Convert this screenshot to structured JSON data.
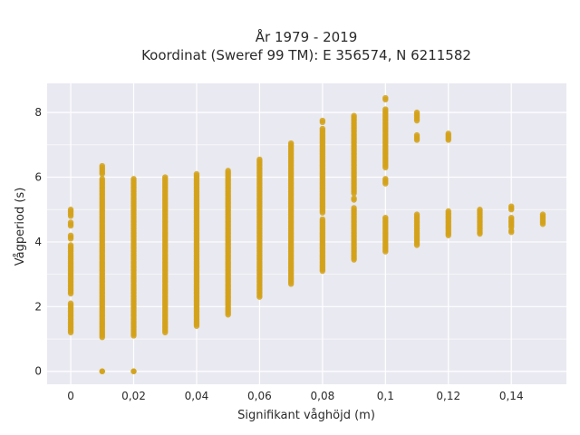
{
  "chart_data": {
    "type": "scatter",
    "title": "År 1979 - 2019",
    "subtitle": "Koordinat (Sweref 99 TM): E 356574, N 6211582",
    "xlabel": "Signifikant våghöjd (m)",
    "ylabel": "Vågperiod (s)",
    "xlim": [
      -0.0075,
      0.1575
    ],
    "ylim": [
      -0.4,
      8.9
    ],
    "x_ticks": [
      0,
      0.02,
      0.04,
      0.06,
      0.08,
      0.1,
      0.12,
      0.14
    ],
    "x_tick_labels": [
      "0",
      "0,02",
      "0,04",
      "0,06",
      "0,08",
      "0,1",
      "0,12",
      "0,14"
    ],
    "y_ticks": [
      0,
      2,
      4,
      6,
      8
    ],
    "y_tick_labels": [
      "0",
      "2",
      "4",
      "6",
      "8"
    ],
    "grid": true,
    "marker_color": "#d4a21a",
    "plot_background": "#e9e9f1",
    "columns": [
      {
        "x": 0,
        "segments": [
          [
            1.2,
            2.1
          ],
          [
            2.4,
            3.9
          ],
          [
            4.1,
            4.2
          ],
          [
            4.5,
            4.6
          ],
          [
            4.8,
            5.0
          ]
        ]
      },
      {
        "x": 0.01,
        "segments": [
          [
            0,
            0
          ],
          [
            1.05,
            5.95
          ],
          [
            6.1,
            6.35
          ]
        ]
      },
      {
        "x": 0.02,
        "segments": [
          [
            0,
            0
          ],
          [
            1.1,
            5.95
          ]
        ]
      },
      {
        "x": 0.03,
        "segments": [
          [
            1.2,
            6.0
          ]
        ]
      },
      {
        "x": 0.04,
        "segments": [
          [
            1.4,
            6.1
          ]
        ]
      },
      {
        "x": 0.05,
        "segments": [
          [
            1.75,
            6.2
          ]
        ]
      },
      {
        "x": 0.06,
        "segments": [
          [
            2.3,
            6.55
          ]
        ]
      },
      {
        "x": 0.07,
        "segments": [
          [
            2.7,
            7.05
          ]
        ]
      },
      {
        "x": 0.08,
        "segments": [
          [
            3.1,
            4.7
          ],
          [
            4.9,
            7.5
          ],
          [
            7.7,
            7.75
          ]
        ]
      },
      {
        "x": 0.09,
        "segments": [
          [
            3.45,
            5.05
          ],
          [
            5.3,
            5.35
          ],
          [
            5.5,
            7.9
          ]
        ]
      },
      {
        "x": 0.1,
        "segments": [
          [
            3.7,
            4.75
          ],
          [
            5.8,
            5.95
          ],
          [
            6.3,
            8.1
          ],
          [
            8.4,
            8.45
          ]
        ]
      },
      {
        "x": 0.11,
        "segments": [
          [
            3.9,
            4.85
          ],
          [
            7.15,
            7.3
          ],
          [
            7.75,
            8.0
          ]
        ]
      },
      {
        "x": 0.12,
        "segments": [
          [
            4.2,
            4.95
          ],
          [
            7.15,
            7.35
          ]
        ]
      },
      {
        "x": 0.13,
        "segments": [
          [
            4.25,
            5.0
          ]
        ]
      },
      {
        "x": 0.14,
        "segments": [
          [
            4.3,
            4.35
          ],
          [
            4.45,
            4.75
          ],
          [
            5.0,
            5.1
          ]
        ]
      },
      {
        "x": 0.15,
        "segments": [
          [
            4.55,
            4.85
          ]
        ]
      }
    ]
  }
}
